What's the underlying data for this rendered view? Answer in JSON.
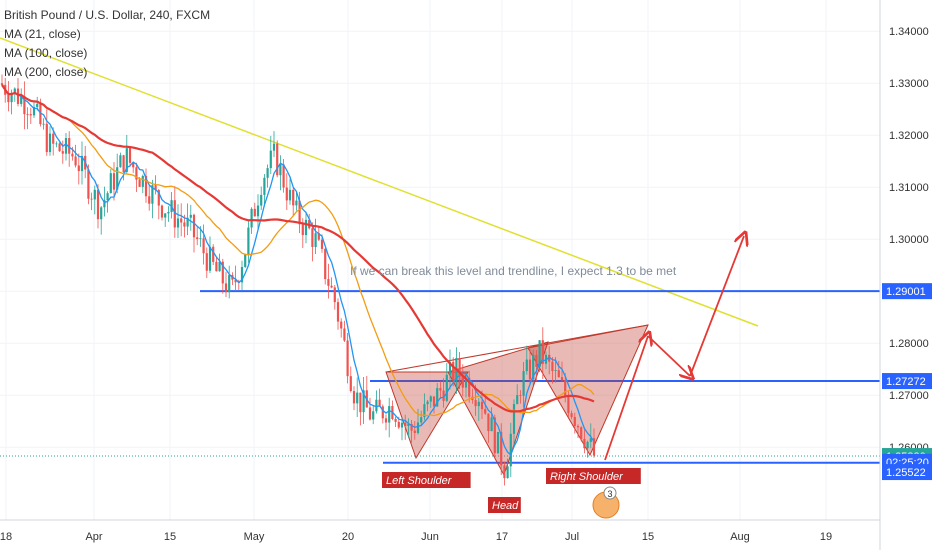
{
  "header": {
    "title": "British Pound / U.S. Dollar, 240, FXCM",
    "indicators": [
      "MA (21, close)",
      "MA (100, close)",
      "MA (200, close)"
    ]
  },
  "chart_data": {
    "type": "candlestick",
    "symbol": "British Pound / U.S. Dollar",
    "interval": "240",
    "source": "FXCM",
    "y_axis": {
      "ylim": [
        1.246,
        1.346
      ],
      "ticks": [
        1.34,
        1.33,
        1.32,
        1.31,
        1.3,
        1.29,
        1.28,
        1.27,
        1.26
      ],
      "tick_labels": [
        "1.34000",
        "1.33000",
        "1.32000",
        "1.31000",
        "1.30000",
        "1.29000",
        "1.28000",
        "1.27000",
        "1.26000"
      ]
    },
    "x_axis": {
      "tick_labels": [
        "18",
        "Apr",
        "15",
        "May",
        "20",
        "Jun",
        "17",
        "Jul",
        "15",
        "Aug",
        "19"
      ]
    },
    "price_labels": [
      {
        "value": 1.29001,
        "label": "1.29001",
        "color": "#2962ff"
      },
      {
        "value": 1.27272,
        "label": "1.27272",
        "color": "#2962ff"
      },
      {
        "value": 1.2583,
        "label": "1.25830",
        "color": "#26a69a"
      },
      {
        "value": 1.2572,
        "label": "02:25:20",
        "color": "#2962ff"
      },
      {
        "value": 1.25522,
        "label": "1.25522",
        "color": "#2962ff"
      }
    ],
    "horizontal_levels": [
      {
        "value": 1.29001,
        "color": "#2962ff"
      },
      {
        "value": 1.27272,
        "color": "#2962ff"
      },
      {
        "value": 1.257,
        "color": "#2962ff"
      }
    ],
    "current_price": 1.2583,
    "annotations": {
      "note": "If we can break this level and trendline, I expect 1.3 to be met",
      "left_shoulder": "Left Shoulder",
      "head": "Head",
      "right_shoulder": "Right Shoulder",
      "event_badge": "3"
    },
    "moving_averages": [
      {
        "label": "MA (21, close)",
        "color": "#2196f3"
      },
      {
        "label": "MA (100, close)",
        "color": "#f39c12"
      },
      {
        "label": "MA (200, close)",
        "color": "#e53935"
      }
    ],
    "colors": {
      "up": "#26a69a",
      "down": "#ef5350",
      "trendline": "#e0e030",
      "pattern": "#c0392b",
      "arrow": "#e53935"
    }
  }
}
